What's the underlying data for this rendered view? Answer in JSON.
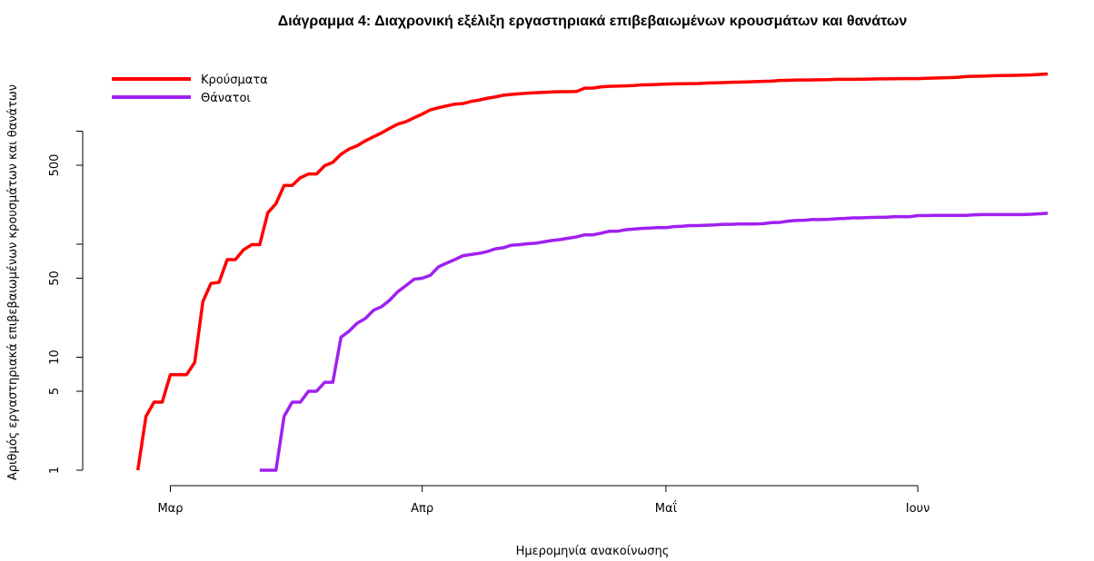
{
  "chart_data": {
    "type": "line",
    "title": "Διάγραμμα 4: Διαχρονική εξέλιξη εργαστηριακά επιβεβαιωμένων κρουσμάτων και θανάτων",
    "xlabel": "Ημερομηνία ανακοίνωσης",
    "ylabel": "Αριθμός εργαστηριακά επιβεβαιωμένων κρουσμάτων και θανάτων",
    "y_scale": "log",
    "ylim": [
      1,
      3500
    ],
    "xlim": [
      "2020-02-21",
      "2020-06-19"
    ],
    "x_ticks": [
      {
        "date": "2020-03-01",
        "label": "Μαρ"
      },
      {
        "date": "2020-04-01",
        "label": "Απρ"
      },
      {
        "date": "2020-05-01",
        "label": "Μαΐ"
      },
      {
        "date": "2020-06-01",
        "label": "Ιουν"
      }
    ],
    "y_ticks": [
      {
        "value": 1,
        "label": "1"
      },
      {
        "value": 5,
        "label": "5"
      },
      {
        "value": 10,
        "label": "10"
      },
      {
        "value": 50,
        "label": "50"
      },
      {
        "value": 100,
        "label": ""
      },
      {
        "value": 500,
        "label": "500"
      },
      {
        "value": 1000,
        "label": ""
      }
    ],
    "legend_position": "top-left",
    "grid": false,
    "series": [
      {
        "name": "Κρούσματα",
        "color": "#ff0000",
        "points": [
          [
            "2020-02-26",
            1
          ],
          [
            "2020-02-27",
            3
          ],
          [
            "2020-02-28",
            4
          ],
          [
            "2020-02-29",
            4
          ],
          [
            "2020-03-01",
            7
          ],
          [
            "2020-03-02",
            7
          ],
          [
            "2020-03-03",
            7
          ],
          [
            "2020-03-04",
            9
          ],
          [
            "2020-03-05",
            31
          ],
          [
            "2020-03-06",
            45
          ],
          [
            "2020-03-07",
            46
          ],
          [
            "2020-03-08",
            73
          ],
          [
            "2020-03-09",
            73
          ],
          [
            "2020-03-10",
            89
          ],
          [
            "2020-03-11",
            99
          ],
          [
            "2020-03-12",
            99
          ],
          [
            "2020-03-13",
            190
          ],
          [
            "2020-03-14",
            228
          ],
          [
            "2020-03-15",
            331
          ],
          [
            "2020-03-16",
            331
          ],
          [
            "2020-03-17",
            387
          ],
          [
            "2020-03-18",
            418
          ],
          [
            "2020-03-19",
            418
          ],
          [
            "2020-03-20",
            495
          ],
          [
            "2020-03-21",
            530
          ],
          [
            "2020-03-22",
            624
          ],
          [
            "2020-03-23",
            695
          ],
          [
            "2020-03-24",
            743
          ],
          [
            "2020-03-25",
            821
          ],
          [
            "2020-03-26",
            892
          ],
          [
            "2020-03-27",
            966
          ],
          [
            "2020-03-28",
            1061
          ],
          [
            "2020-03-29",
            1156
          ],
          [
            "2020-03-30",
            1212
          ],
          [
            "2020-03-31",
            1314
          ],
          [
            "2020-04-01",
            1415
          ],
          [
            "2020-04-02",
            1544
          ],
          [
            "2020-04-03",
            1613
          ],
          [
            "2020-04-04",
            1673
          ],
          [
            "2020-04-05",
            1735
          ],
          [
            "2020-04-06",
            1755
          ],
          [
            "2020-04-07",
            1832
          ],
          [
            "2020-04-08",
            1884
          ],
          [
            "2020-04-09",
            1955
          ],
          [
            "2020-04-10",
            2011
          ],
          [
            "2020-04-11",
            2081
          ],
          [
            "2020-04-12",
            2114
          ],
          [
            "2020-04-13",
            2145
          ],
          [
            "2020-04-14",
            2170
          ],
          [
            "2020-04-15",
            2192
          ],
          [
            "2020-04-16",
            2207
          ],
          [
            "2020-04-17",
            2224
          ],
          [
            "2020-04-18",
            2235
          ],
          [
            "2020-04-19",
            2235
          ],
          [
            "2020-04-20",
            2245
          ],
          [
            "2020-04-21",
            2401
          ],
          [
            "2020-04-22",
            2408
          ],
          [
            "2020-04-23",
            2463
          ],
          [
            "2020-04-24",
            2490
          ],
          [
            "2020-04-25",
            2506
          ],
          [
            "2020-04-26",
            2517
          ],
          [
            "2020-04-27",
            2534
          ],
          [
            "2020-04-28",
            2566
          ],
          [
            "2020-04-29",
            2576
          ],
          [
            "2020-04-30",
            2591
          ],
          [
            "2020-05-01",
            2612
          ],
          [
            "2020-05-02",
            2620
          ],
          [
            "2020-05-03",
            2626
          ],
          [
            "2020-05-04",
            2632
          ],
          [
            "2020-05-05",
            2642
          ],
          [
            "2020-05-06",
            2663
          ],
          [
            "2020-05-07",
            2678
          ],
          [
            "2020-05-08",
            2691
          ],
          [
            "2020-05-09",
            2710
          ],
          [
            "2020-05-10",
            2716
          ],
          [
            "2020-05-11",
            2726
          ],
          [
            "2020-05-12",
            2744
          ],
          [
            "2020-05-13",
            2760
          ],
          [
            "2020-05-14",
            2770
          ],
          [
            "2020-05-15",
            2810
          ],
          [
            "2020-05-16",
            2819
          ],
          [
            "2020-05-17",
            2834
          ],
          [
            "2020-05-18",
            2836
          ],
          [
            "2020-05-19",
            2840
          ],
          [
            "2020-05-20",
            2850
          ],
          [
            "2020-05-21",
            2853
          ],
          [
            "2020-05-22",
            2874
          ],
          [
            "2020-05-23",
            2876
          ],
          [
            "2020-05-24",
            2878
          ],
          [
            "2020-05-25",
            2882
          ],
          [
            "2020-05-26",
            2892
          ],
          [
            "2020-05-27",
            2903
          ],
          [
            "2020-05-28",
            2906
          ],
          [
            "2020-05-29",
            2909
          ],
          [
            "2020-05-30",
            2915
          ],
          [
            "2020-05-31",
            2917
          ],
          [
            "2020-06-01",
            2918
          ],
          [
            "2020-06-02",
            2937
          ],
          [
            "2020-06-03",
            2952
          ],
          [
            "2020-06-04",
            2967
          ],
          [
            "2020-06-05",
            2980
          ],
          [
            "2020-06-06",
            2997
          ],
          [
            "2020-06-07",
            3049
          ],
          [
            "2020-06-08",
            3058
          ],
          [
            "2020-06-09",
            3068
          ],
          [
            "2020-06-10",
            3088
          ],
          [
            "2020-06-11",
            3108
          ],
          [
            "2020-06-12",
            3112
          ],
          [
            "2020-06-13",
            3121
          ],
          [
            "2020-06-14",
            3134
          ],
          [
            "2020-06-15",
            3148
          ],
          [
            "2020-06-16",
            3178
          ],
          [
            "2020-06-17",
            3203
          ]
        ]
      },
      {
        "name": "Θάνατοι",
        "color": "#a020f0",
        "points": [
          [
            "2020-03-12",
            1
          ],
          [
            "2020-03-13",
            1
          ],
          [
            "2020-03-14",
            1
          ],
          [
            "2020-03-15",
            3
          ],
          [
            "2020-03-16",
            4
          ],
          [
            "2020-03-17",
            4
          ],
          [
            "2020-03-18",
            5
          ],
          [
            "2020-03-19",
            5
          ],
          [
            "2020-03-20",
            6
          ],
          [
            "2020-03-21",
            6
          ],
          [
            "2020-03-22",
            15
          ],
          [
            "2020-03-23",
            17
          ],
          [
            "2020-03-24",
            20
          ],
          [
            "2020-03-25",
            22
          ],
          [
            "2020-03-26",
            26
          ],
          [
            "2020-03-27",
            28
          ],
          [
            "2020-03-28",
            32
          ],
          [
            "2020-03-29",
            38
          ],
          [
            "2020-03-30",
            43
          ],
          [
            "2020-03-31",
            49
          ],
          [
            "2020-04-01",
            50
          ],
          [
            "2020-04-02",
            53
          ],
          [
            "2020-04-03",
            63
          ],
          [
            "2020-04-04",
            68
          ],
          [
            "2020-04-05",
            73
          ],
          [
            "2020-04-06",
            79
          ],
          [
            "2020-04-07",
            81
          ],
          [
            "2020-04-08",
            83
          ],
          [
            "2020-04-09",
            86
          ],
          [
            "2020-04-10",
            91
          ],
          [
            "2020-04-11",
            93
          ],
          [
            "2020-04-12",
            98
          ],
          [
            "2020-04-13",
            99
          ],
          [
            "2020-04-14",
            101
          ],
          [
            "2020-04-15",
            102
          ],
          [
            "2020-04-16",
            105
          ],
          [
            "2020-04-17",
            108
          ],
          [
            "2020-04-18",
            110
          ],
          [
            "2020-04-19",
            113
          ],
          [
            "2020-04-20",
            116
          ],
          [
            "2020-04-21",
            121
          ],
          [
            "2020-04-22",
            121
          ],
          [
            "2020-04-23",
            125
          ],
          [
            "2020-04-24",
            130
          ],
          [
            "2020-04-25",
            130
          ],
          [
            "2020-04-26",
            134
          ],
          [
            "2020-04-27",
            136
          ],
          [
            "2020-04-28",
            138
          ],
          [
            "2020-04-29",
            139
          ],
          [
            "2020-04-30",
            140
          ],
          [
            "2020-05-01",
            140
          ],
          [
            "2020-05-02",
            143
          ],
          [
            "2020-05-03",
            144
          ],
          [
            "2020-05-04",
            146
          ],
          [
            "2020-05-05",
            146
          ],
          [
            "2020-05-06",
            147
          ],
          [
            "2020-05-07",
            148
          ],
          [
            "2020-05-08",
            150
          ],
          [
            "2020-05-09",
            150
          ],
          [
            "2020-05-10",
            151
          ],
          [
            "2020-05-11",
            151
          ],
          [
            "2020-05-12",
            151
          ],
          [
            "2020-05-13",
            152
          ],
          [
            "2020-05-14",
            155
          ],
          [
            "2020-05-15",
            156
          ],
          [
            "2020-05-16",
            160
          ],
          [
            "2020-05-17",
            162
          ],
          [
            "2020-05-18",
            163
          ],
          [
            "2020-05-19",
            165
          ],
          [
            "2020-05-20",
            165
          ],
          [
            "2020-05-21",
            166
          ],
          [
            "2020-05-22",
            168
          ],
          [
            "2020-05-23",
            169
          ],
          [
            "2020-05-24",
            171
          ],
          [
            "2020-05-25",
            171
          ],
          [
            "2020-05-26",
            172
          ],
          [
            "2020-05-27",
            173
          ],
          [
            "2020-05-28",
            173
          ],
          [
            "2020-05-29",
            175
          ],
          [
            "2020-05-30",
            175
          ],
          [
            "2020-05-31",
            175
          ],
          [
            "2020-06-01",
            179
          ],
          [
            "2020-06-02",
            179
          ],
          [
            "2020-06-03",
            180
          ],
          [
            "2020-06-04",
            180
          ],
          [
            "2020-06-05",
            180
          ],
          [
            "2020-06-06",
            180
          ],
          [
            "2020-06-07",
            180
          ],
          [
            "2020-06-08",
            182
          ],
          [
            "2020-06-09",
            183
          ],
          [
            "2020-06-10",
            183
          ],
          [
            "2020-06-11",
            183
          ],
          [
            "2020-06-12",
            183
          ],
          [
            "2020-06-13",
            183
          ],
          [
            "2020-06-14",
            183
          ],
          [
            "2020-06-15",
            184
          ],
          [
            "2020-06-16",
            186
          ],
          [
            "2020-06-17",
            188
          ]
        ]
      }
    ]
  }
}
